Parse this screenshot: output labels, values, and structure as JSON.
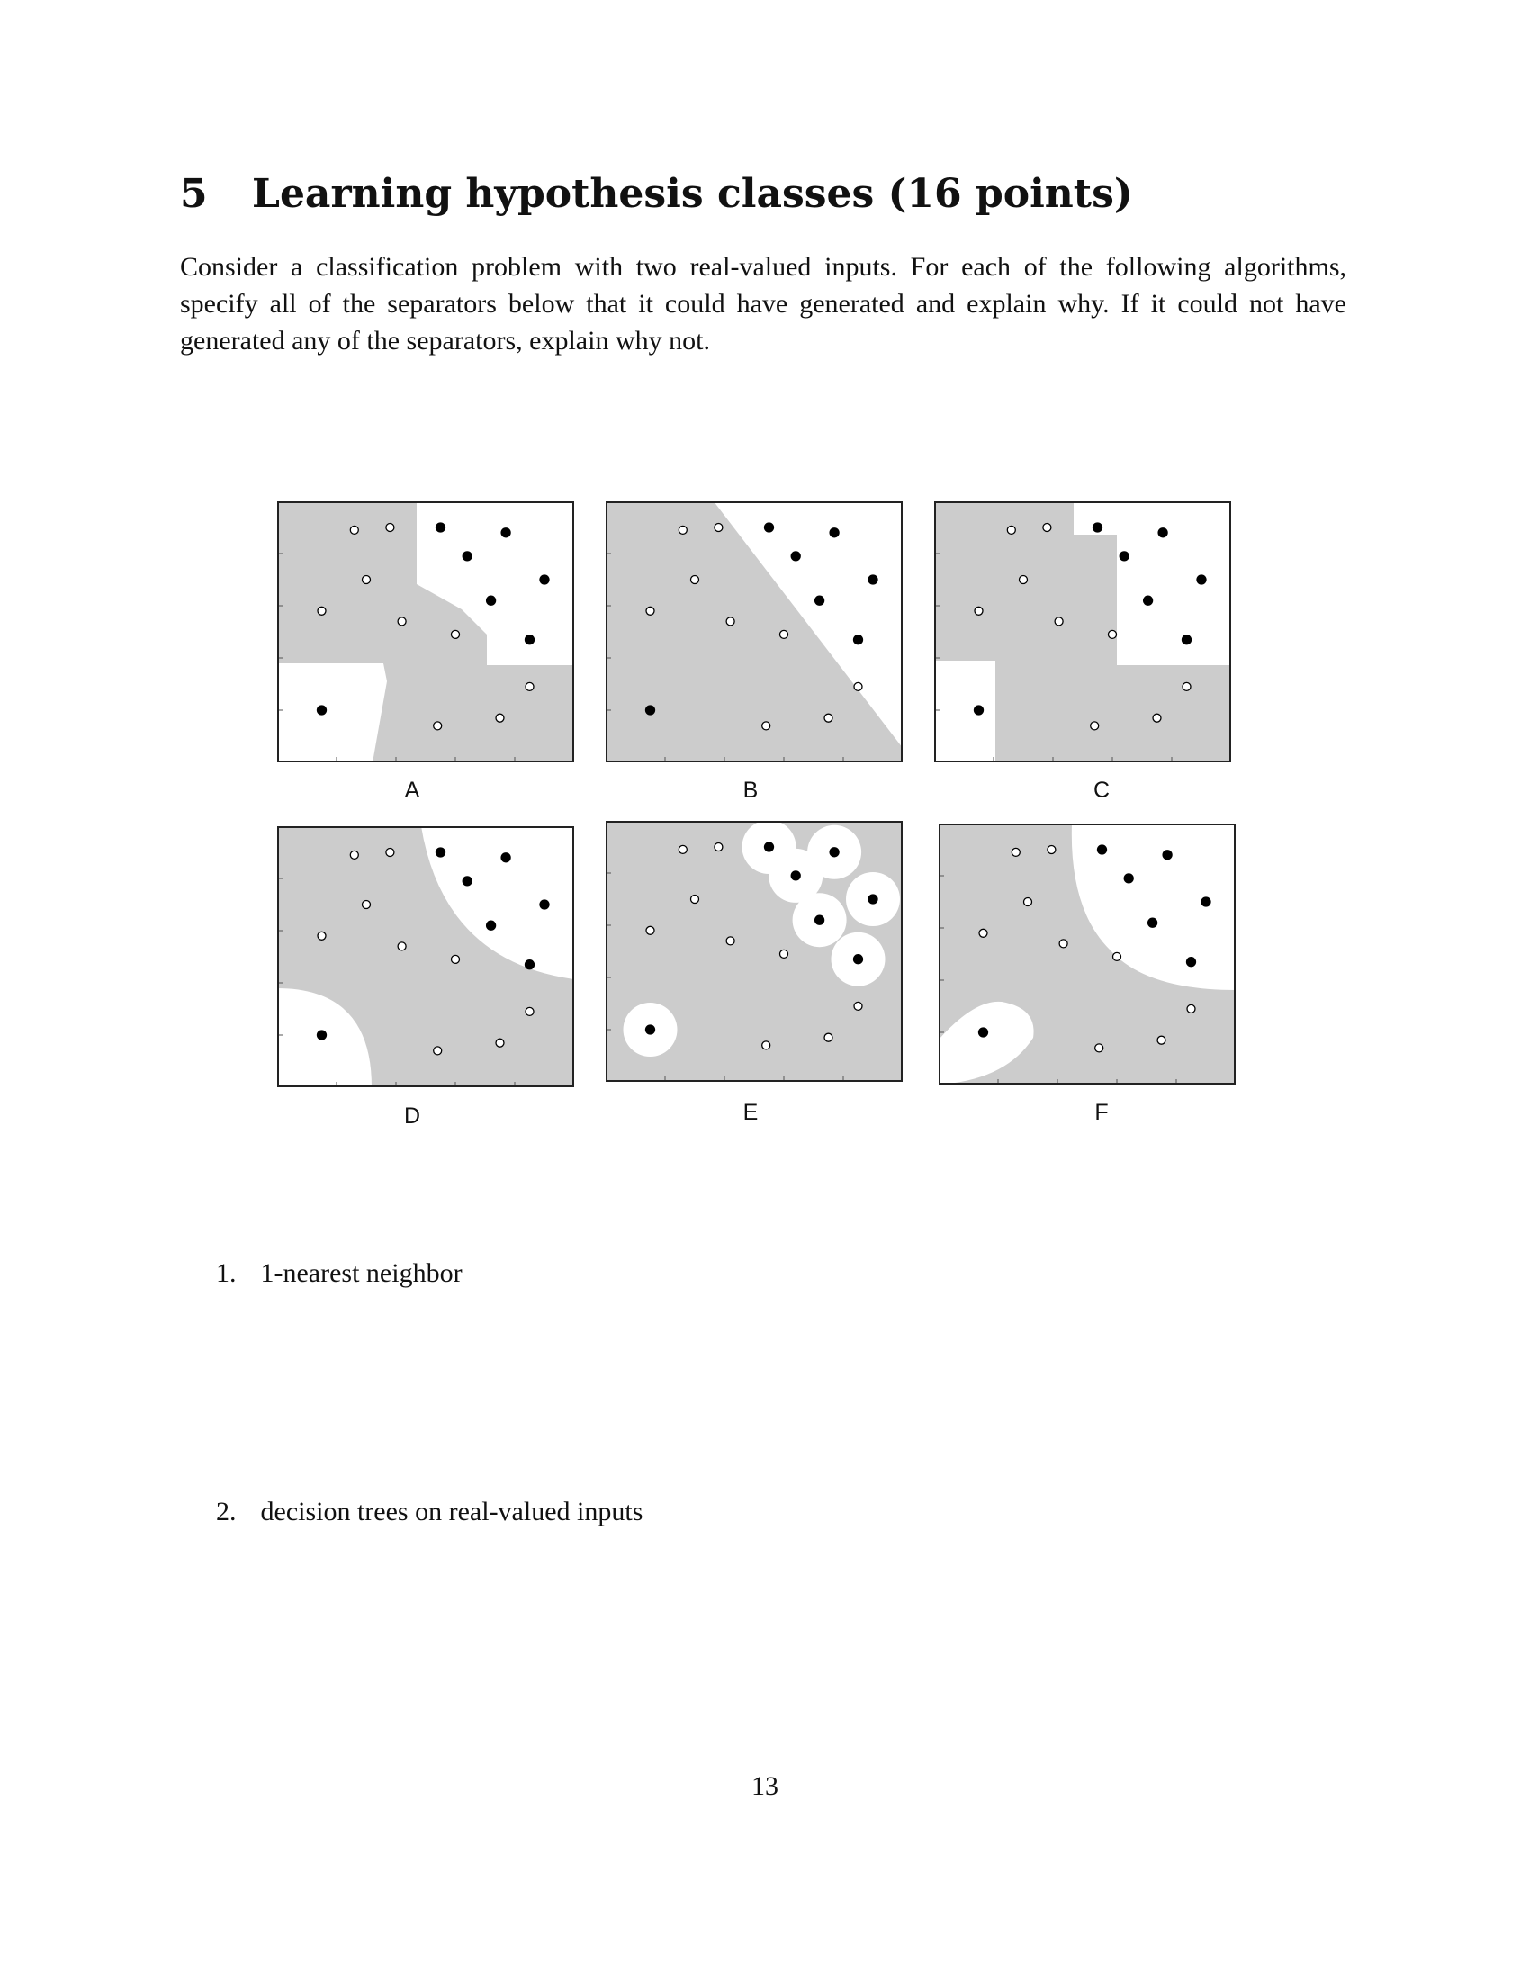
{
  "section": {
    "number": "5",
    "title": "Learning hypothesis classes (16 points)"
  },
  "intro": "Consider a classification problem with two real-valued inputs. For each of the following algorithms, specify all of the separators below that it could have generated and explain why. If it could not have generated any of the separators, explain why not.",
  "colors": {
    "positive_region": "#ffffff",
    "negative_region": "#cccccc",
    "point_stroke": "#000000"
  },
  "points": [
    {
      "x": 0.26,
      "y": 0.89,
      "class": "negative"
    },
    {
      "x": 0.38,
      "y": 0.9,
      "class": "negative"
    },
    {
      "x": 0.3,
      "y": 0.7,
      "class": "negative"
    },
    {
      "x": 0.15,
      "y": 0.58,
      "class": "negative"
    },
    {
      "x": 0.42,
      "y": 0.54,
      "class": "negative"
    },
    {
      "x": 0.6,
      "y": 0.49,
      "class": "negative"
    },
    {
      "x": 0.85,
      "y": 0.29,
      "class": "negative"
    },
    {
      "x": 0.54,
      "y": 0.14,
      "class": "negative"
    },
    {
      "x": 0.75,
      "y": 0.17,
      "class": "negative"
    },
    {
      "x": 0.55,
      "y": 0.9,
      "class": "positive"
    },
    {
      "x": 0.77,
      "y": 0.88,
      "class": "positive"
    },
    {
      "x": 0.64,
      "y": 0.79,
      "class": "positive"
    },
    {
      "x": 0.9,
      "y": 0.7,
      "class": "positive"
    },
    {
      "x": 0.72,
      "y": 0.62,
      "class": "positive"
    },
    {
      "x": 0.85,
      "y": 0.47,
      "class": "positive"
    },
    {
      "x": 0.15,
      "y": 0.2,
      "class": "positive"
    }
  ],
  "panels": [
    {
      "label": "A",
      "region": "voronoi"
    },
    {
      "label": "B",
      "region": "linear"
    },
    {
      "label": "C",
      "region": "axis-aligned"
    },
    {
      "label": "D",
      "region": "circular"
    },
    {
      "label": "E",
      "region": "blobs"
    },
    {
      "label": "F",
      "region": "smooth"
    }
  ],
  "questions": [
    {
      "number": "1.",
      "text": "1-nearest neighbor"
    },
    {
      "number": "2.",
      "text": "decision trees on real-valued inputs"
    }
  ],
  "page_number": "13"
}
